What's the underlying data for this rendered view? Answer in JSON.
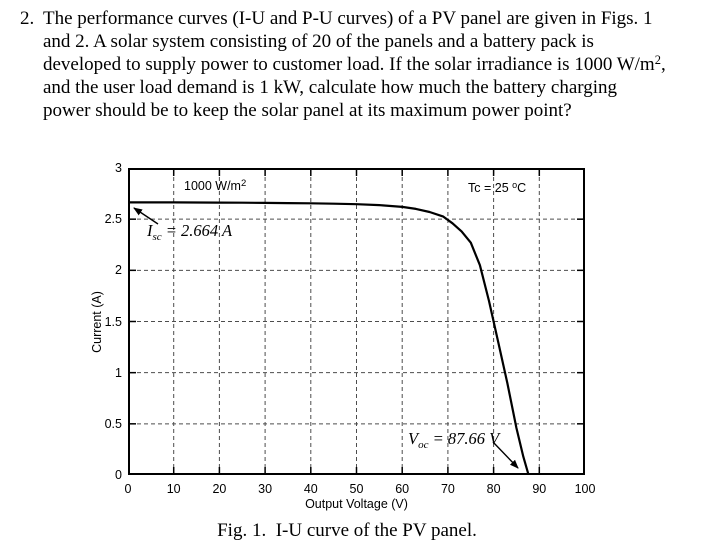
{
  "problem": {
    "number": "2.",
    "line1": "The performance curves (I-U and P-U curves) of a PV panel are given in Figs. 1",
    "line2": "and 2. A solar system consisting of 20 of the panels and a battery pack is",
    "line3_pre": "developed to supply power to customer load. If the solar irradiance is 1000 W/m",
    "line3_sup": "2",
    "line3_post": ",",
    "line4": "and the user load demand is 1 kW, calculate how much the battery charging",
    "line5": "power should be to keep the solar panel at its maximum power point?"
  },
  "chart_data": {
    "type": "line",
    "title": "",
    "xlabel": "Output Voltage (V)",
    "ylabel": "Current (A)",
    "xlim": [
      0,
      100
    ],
    "ylim": [
      0,
      3
    ],
    "xticks": [
      0,
      10,
      20,
      30,
      40,
      50,
      60,
      70,
      80,
      90,
      100
    ],
    "yticks": [
      0,
      0.5,
      1,
      1.5,
      2,
      2.5,
      3
    ],
    "grid": true,
    "legend": "none",
    "series": [
      {
        "name": "I-U curve at 1000 W/m2, Tc 25 C",
        "x": [
          0,
          5,
          10,
          15,
          20,
          25,
          30,
          35,
          40,
          45,
          50,
          55,
          60,
          63,
          66,
          69,
          71,
          73,
          75,
          77,
          79,
          81,
          83,
          85,
          86.5,
          87.66
        ],
        "y": [
          2.664,
          2.664,
          2.664,
          2.663,
          2.662,
          2.661,
          2.659,
          2.657,
          2.655,
          2.651,
          2.646,
          2.637,
          2.62,
          2.6,
          2.57,
          2.525,
          2.46,
          2.38,
          2.27,
          2.05,
          1.7,
          1.3,
          0.9,
          0.46,
          0.18,
          0
        ]
      }
    ],
    "key_points": {
      "isc_A": 2.664,
      "voc_V": 87.66
    },
    "annotations": {
      "irradiance": {
        "text": "1000 W/m",
        "sup": "2"
      },
      "temperature": {
        "pre": "Tc = 25 ",
        "sup": "o",
        "post": "C"
      },
      "isc": {
        "var": "I",
        "sub": "sc",
        "rest": " = 2.664 A"
      },
      "voc": {
        "var": "V",
        "sub": "oc",
        "rest": " = 87.66 V"
      }
    }
  },
  "figure": {
    "caption": "Fig. 1.  I-U curve of the PV panel."
  }
}
